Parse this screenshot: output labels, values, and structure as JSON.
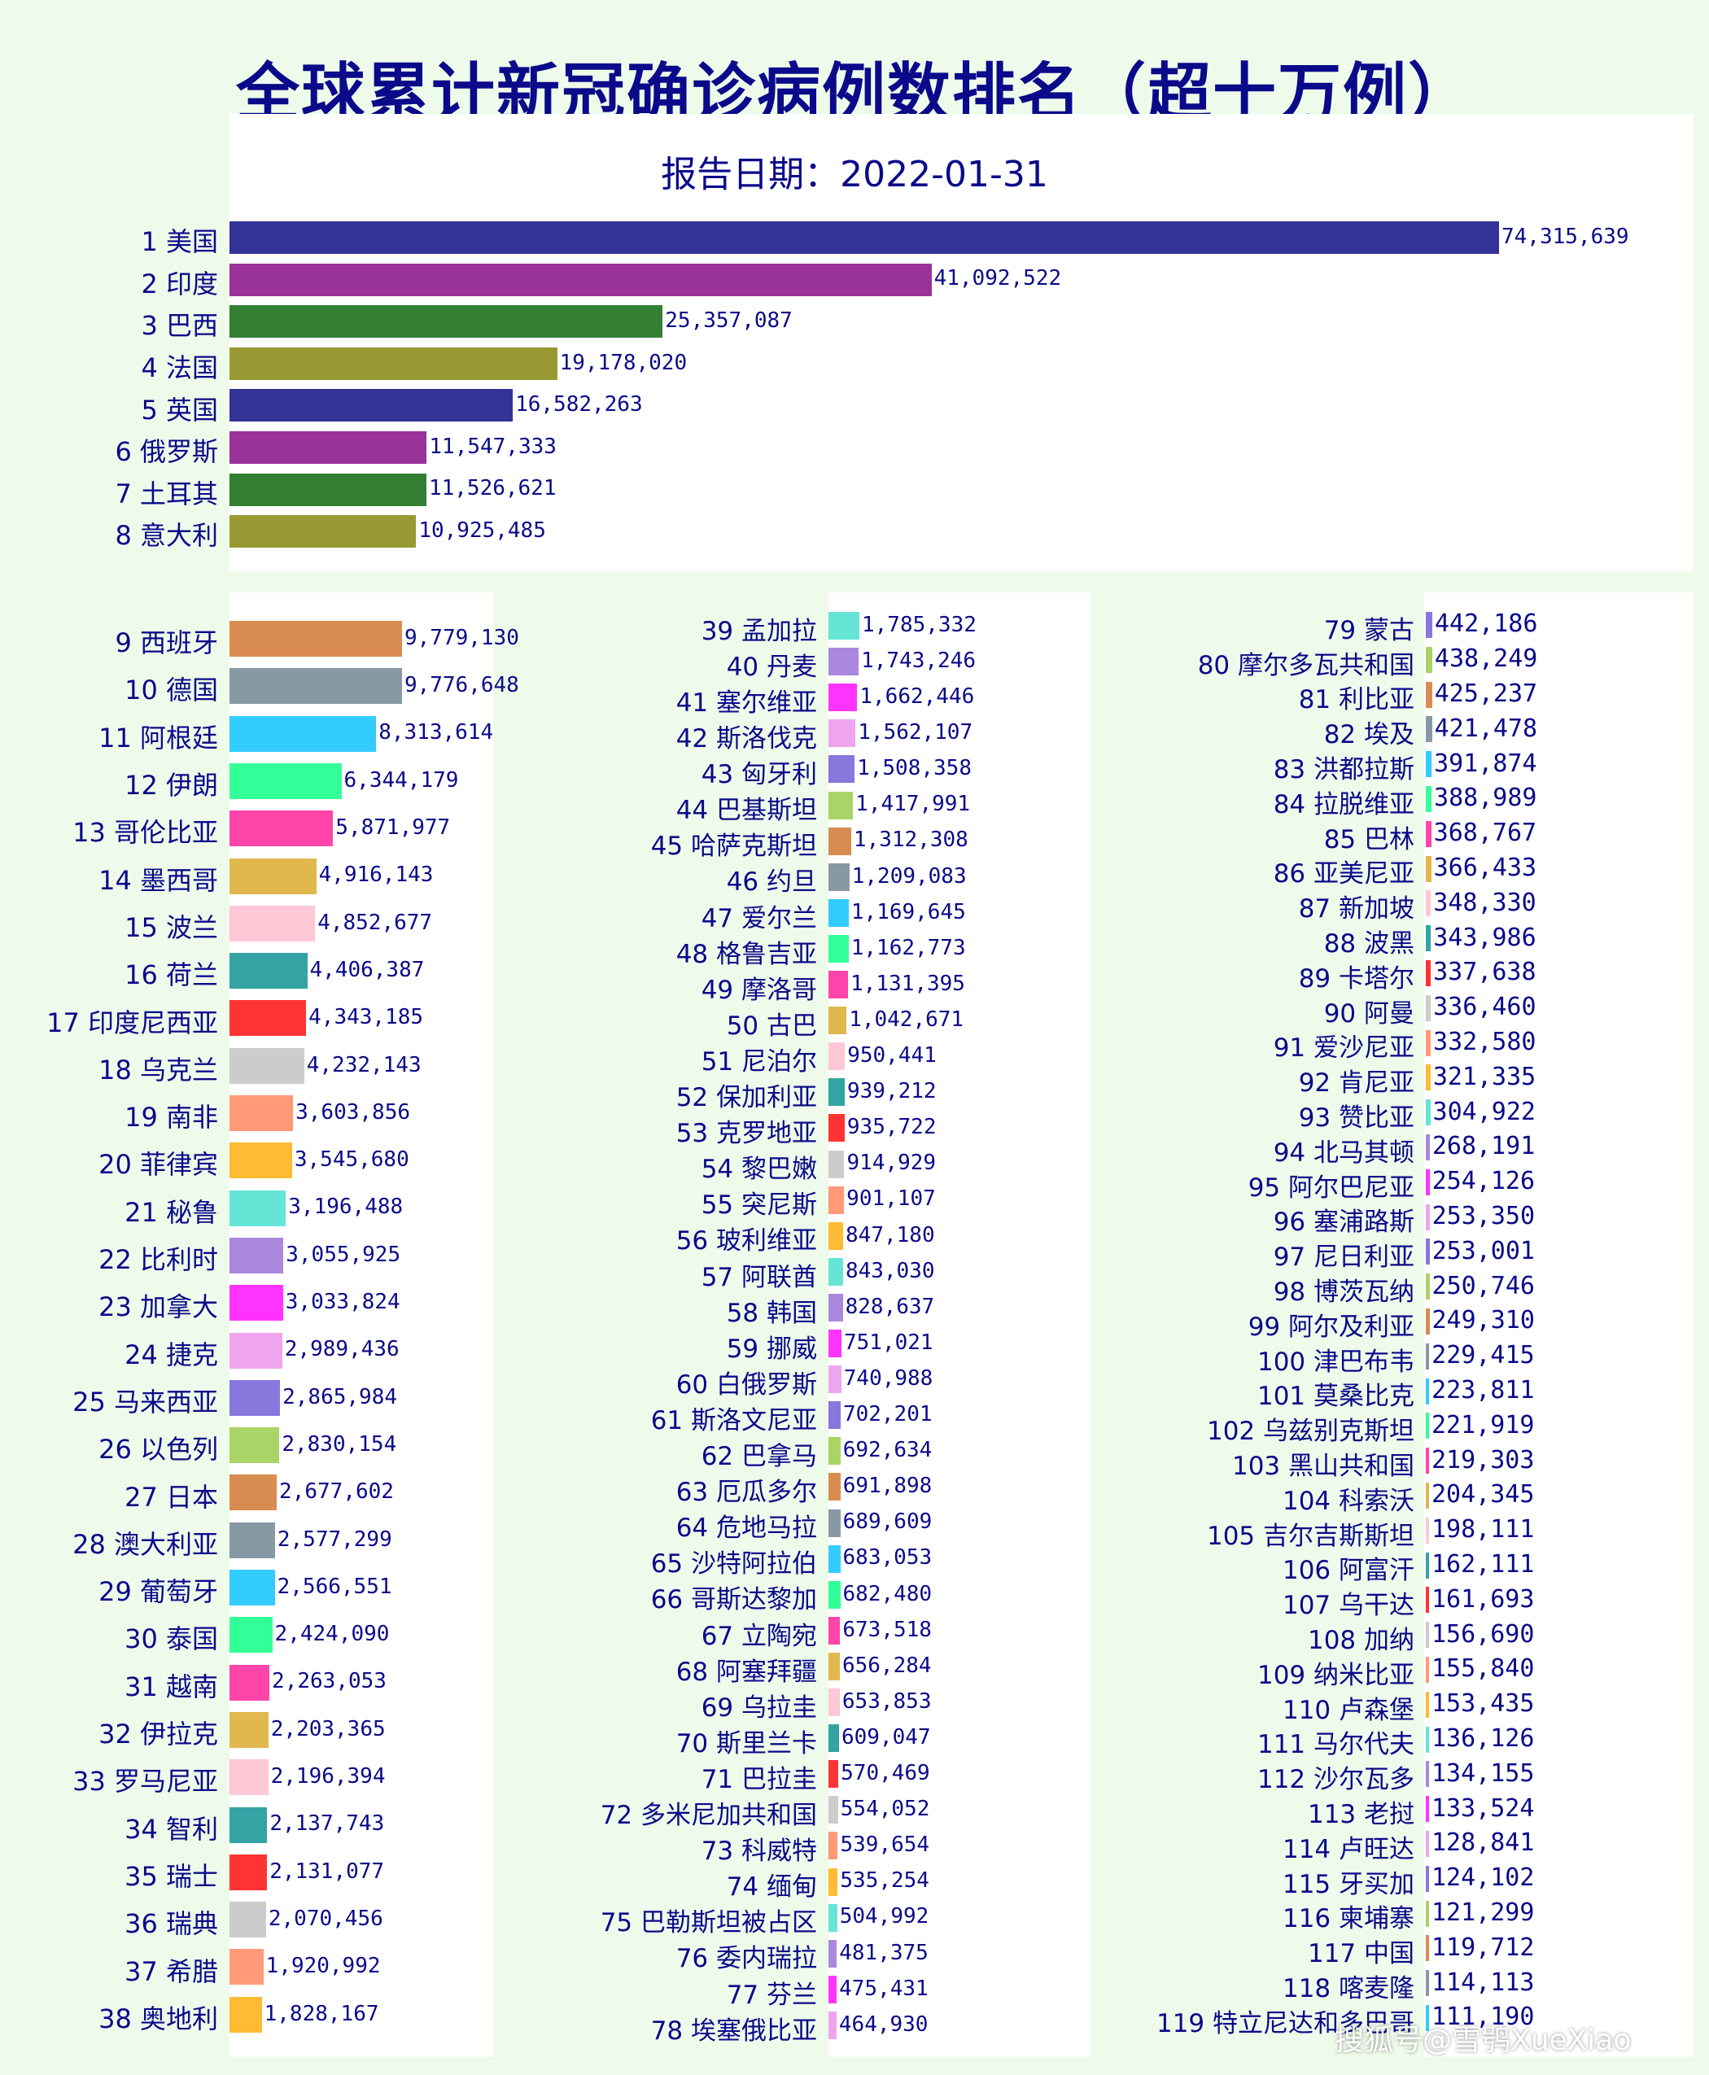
{
  "chart_data": {
    "type": "bar",
    "title": "全球累计新冠确诊病例数排名（超十万例）",
    "subtitle": "报告日期：2022-01-31",
    "watermark": "搜狐号@雪鸮XueXiao",
    "series_colors": [
      "#333399",
      "#993399",
      "#337f33",
      "#999933",
      "#d98c4f",
      "#8899a6",
      "#33ccff",
      "#33ff99",
      "#ff44aa",
      "#e0b84e",
      "#ffc8d6",
      "#33a3a3",
      "#ff3333",
      "#cccccc",
      "#ff9977",
      "#ffbb33",
      "#66e5d6",
      "#aa88dd",
      "#ff33ff",
      "#eea5ee",
      "#8877dd",
      "#aad466"
    ],
    "items": [
      {
        "rank": 1,
        "name": "美国",
        "value": 74315639,
        "label": "74,315,639"
      },
      {
        "rank": 2,
        "name": "印度",
        "value": 41092522,
        "label": "41,092,522"
      },
      {
        "rank": 3,
        "name": "巴西",
        "value": 25357087,
        "label": "25,357,087"
      },
      {
        "rank": 4,
        "name": "法国",
        "value": 19178020,
        "label": "19,178,020"
      },
      {
        "rank": 5,
        "name": "英国",
        "value": 16582263,
        "label": "16,582,263"
      },
      {
        "rank": 6,
        "name": "俄罗斯",
        "value": 11547333,
        "label": "11,547,333"
      },
      {
        "rank": 7,
        "name": "土耳其",
        "value": 11526621,
        "label": "11,526,621"
      },
      {
        "rank": 8,
        "name": "意大利",
        "value": 10925485,
        "label": "10,925,485"
      },
      {
        "rank": 9,
        "name": "西班牙",
        "value": 9779130,
        "label": "9,779,130"
      },
      {
        "rank": 10,
        "name": "德国",
        "value": 9776648,
        "label": "9,776,648"
      },
      {
        "rank": 11,
        "name": "阿根廷",
        "value": 8313614,
        "label": "8,313,614"
      },
      {
        "rank": 12,
        "name": "伊朗",
        "value": 6344179,
        "label": "6,344,179"
      },
      {
        "rank": 13,
        "name": "哥伦比亚",
        "value": 5871977,
        "label": "5,871,977"
      },
      {
        "rank": 14,
        "name": "墨西哥",
        "value": 4916143,
        "label": "4,916,143"
      },
      {
        "rank": 15,
        "name": "波兰",
        "value": 4852677,
        "label": "4,852,677"
      },
      {
        "rank": 16,
        "name": "荷兰",
        "value": 4406387,
        "label": "4,406,387"
      },
      {
        "rank": 17,
        "name": "印度尼西亚",
        "value": 4343185,
        "label": "4,343,185"
      },
      {
        "rank": 18,
        "name": "乌克兰",
        "value": 4232143,
        "label": "4,232,143"
      },
      {
        "rank": 19,
        "name": "南非",
        "value": 3603856,
        "label": "3,603,856"
      },
      {
        "rank": 20,
        "name": "菲律宾",
        "value": 3545680,
        "label": "3,545,680"
      },
      {
        "rank": 21,
        "name": "秘鲁",
        "value": 3196488,
        "label": "3,196,488"
      },
      {
        "rank": 22,
        "name": "比利时",
        "value": 3055925,
        "label": "3,055,925"
      },
      {
        "rank": 23,
        "name": "加拿大",
        "value": 3033824,
        "label": "3,033,824"
      },
      {
        "rank": 24,
        "name": "捷克",
        "value": 2989436,
        "label": "2,989,436"
      },
      {
        "rank": 25,
        "name": "马来西亚",
        "value": 2865984,
        "label": "2,865,984"
      },
      {
        "rank": 26,
        "name": "以色列",
        "value": 2830154,
        "label": "2,830,154"
      },
      {
        "rank": 27,
        "name": "日本",
        "value": 2677602,
        "label": "2,677,602"
      },
      {
        "rank": 28,
        "name": "澳大利亚",
        "value": 2577299,
        "label": "2,577,299"
      },
      {
        "rank": 29,
        "name": "葡萄牙",
        "value": 2566551,
        "label": "2,566,551"
      },
      {
        "rank": 30,
        "name": "泰国",
        "value": 2424090,
        "label": "2,424,090"
      },
      {
        "rank": 31,
        "name": "越南",
        "value": 2263053,
        "label": "2,263,053"
      },
      {
        "rank": 32,
        "name": "伊拉克",
        "value": 2203365,
        "label": "2,203,365"
      },
      {
        "rank": 33,
        "name": "罗马尼亚",
        "value": 2196394,
        "label": "2,196,394"
      },
      {
        "rank": 34,
        "name": "智利",
        "value": 2137743,
        "label": "2,137,743"
      },
      {
        "rank": 35,
        "name": "瑞士",
        "value": 2131077,
        "label": "2,131,077"
      },
      {
        "rank": 36,
        "name": "瑞典",
        "value": 2070456,
        "label": "2,070,456"
      },
      {
        "rank": 37,
        "name": "希腊",
        "value": 1920992,
        "label": "1,920,992"
      },
      {
        "rank": 38,
        "name": "奥地利",
        "value": 1828167,
        "label": "1,828,167"
      },
      {
        "rank": 39,
        "name": "孟加拉",
        "value": 1785332,
        "label": "1,785,332"
      },
      {
        "rank": 40,
        "name": "丹麦",
        "value": 1743246,
        "label": "1,743,246"
      },
      {
        "rank": 41,
        "name": "塞尔维亚",
        "value": 1662446,
        "label": "1,662,446"
      },
      {
        "rank": 42,
        "name": "斯洛伐克",
        "value": 1562107,
        "label": "1,562,107"
      },
      {
        "rank": 43,
        "name": "匈牙利",
        "value": 1508358,
        "label": "1,508,358"
      },
      {
        "rank": 44,
        "name": "巴基斯坦",
        "value": 1417991,
        "label": "1,417,991"
      },
      {
        "rank": 45,
        "name": "哈萨克斯坦",
        "value": 1312308,
        "label": "1,312,308"
      },
      {
        "rank": 46,
        "name": "约旦",
        "value": 1209083,
        "label": "1,209,083"
      },
      {
        "rank": 47,
        "name": "爱尔兰",
        "value": 1169645,
        "label": "1,169,645"
      },
      {
        "rank": 48,
        "name": "格鲁吉亚",
        "value": 1162773,
        "label": "1,162,773"
      },
      {
        "rank": 49,
        "name": "摩洛哥",
        "value": 1131395,
        "label": "1,131,395"
      },
      {
        "rank": 50,
        "name": "古巴",
        "value": 1042671,
        "label": "1,042,671"
      },
      {
        "rank": 51,
        "name": "尼泊尔",
        "value": 950441,
        "label": "950,441"
      },
      {
        "rank": 52,
        "name": "保加利亚",
        "value": 939212,
        "label": "939,212"
      },
      {
        "rank": 53,
        "name": "克罗地亚",
        "value": 935722,
        "label": "935,722"
      },
      {
        "rank": 54,
        "name": "黎巴嫩",
        "value": 914929,
        "label": "914,929"
      },
      {
        "rank": 55,
        "name": "突尼斯",
        "value": 901107,
        "label": "901,107"
      },
      {
        "rank": 56,
        "name": "玻利维亚",
        "value": 847180,
        "label": "847,180"
      },
      {
        "rank": 57,
        "name": "阿联酋",
        "value": 843030,
        "label": "843,030"
      },
      {
        "rank": 58,
        "name": "韩国",
        "value": 828637,
        "label": "828,637"
      },
      {
        "rank": 59,
        "name": "挪威",
        "value": 751021,
        "label": "751,021"
      },
      {
        "rank": 60,
        "name": "白俄罗斯",
        "value": 740988,
        "label": "740,988"
      },
      {
        "rank": 61,
        "name": "斯洛文尼亚",
        "value": 702201,
        "label": "702,201"
      },
      {
        "rank": 62,
        "name": "巴拿马",
        "value": 692634,
        "label": "692,634"
      },
      {
        "rank": 63,
        "name": "厄瓜多尔",
        "value": 691898,
        "label": "691,898"
      },
      {
        "rank": 64,
        "name": "危地马拉",
        "value": 689609,
        "label": "689,609"
      },
      {
        "rank": 65,
        "name": "沙特阿拉伯",
        "value": 683053,
        "label": "683,053"
      },
      {
        "rank": 66,
        "name": "哥斯达黎加",
        "value": 682480,
        "label": "682,480"
      },
      {
        "rank": 67,
        "name": "立陶宛",
        "value": 673518,
        "label": "673,518"
      },
      {
        "rank": 68,
        "name": "阿塞拜疆",
        "value": 656284,
        "label": "656,284"
      },
      {
        "rank": 69,
        "name": "乌拉圭",
        "value": 653853,
        "label": "653,853"
      },
      {
        "rank": 70,
        "name": "斯里兰卡",
        "value": 609047,
        "label": "609,047"
      },
      {
        "rank": 71,
        "name": "巴拉圭",
        "value": 570469,
        "label": "570,469"
      },
      {
        "rank": 72,
        "name": "多米尼加共和国",
        "value": 554052,
        "label": "554,052"
      },
      {
        "rank": 73,
        "name": "科威特",
        "value": 539654,
        "label": "539,654"
      },
      {
        "rank": 74,
        "name": "缅甸",
        "value": 535254,
        "label": "535,254"
      },
      {
        "rank": 75,
        "name": "巴勒斯坦被占区",
        "value": 504992,
        "label": "504,992"
      },
      {
        "rank": 76,
        "name": "委内瑞拉",
        "value": 481375,
        "label": "481,375"
      },
      {
        "rank": 77,
        "name": "芬兰",
        "value": 475431,
        "label": "475,431"
      },
      {
        "rank": 78,
        "name": "埃塞俄比亚",
        "value": 464930,
        "label": "464,930"
      },
      {
        "rank": 79,
        "name": "蒙古",
        "value": 442186,
        "label": "442,186"
      },
      {
        "rank": 80,
        "name": "摩尔多瓦共和国",
        "value": 438249,
        "label": "438,249"
      },
      {
        "rank": 81,
        "name": "利比亚",
        "value": 425237,
        "label": "425,237"
      },
      {
        "rank": 82,
        "name": "埃及",
        "value": 421478,
        "label": "421,478"
      },
      {
        "rank": 83,
        "name": "洪都拉斯",
        "value": 391874,
        "label": "391,874"
      },
      {
        "rank": 84,
        "name": "拉脱维亚",
        "value": 388989,
        "label": "388,989"
      },
      {
        "rank": 85,
        "name": "巴林",
        "value": 368767,
        "label": "368,767"
      },
      {
        "rank": 86,
        "name": "亚美尼亚",
        "value": 366433,
        "label": "366,433"
      },
      {
        "rank": 87,
        "name": "新加坡",
        "value": 348330,
        "label": "348,330"
      },
      {
        "rank": 88,
        "name": "波黑",
        "value": 343986,
        "label": "343,986"
      },
      {
        "rank": 89,
        "name": "卡塔尔",
        "value": 337638,
        "label": "337,638"
      },
      {
        "rank": 90,
        "name": "阿曼",
        "value": 336460,
        "label": "336,460"
      },
      {
        "rank": 91,
        "name": "爱沙尼亚",
        "value": 332580,
        "label": "332,580"
      },
      {
        "rank": 92,
        "name": "肯尼亚",
        "value": 321335,
        "label": "321,335"
      },
      {
        "rank": 93,
        "name": "赞比亚",
        "value": 304922,
        "label": "304,922"
      },
      {
        "rank": 94,
        "name": "北马其顿",
        "value": 268191,
        "label": "268,191"
      },
      {
        "rank": 95,
        "name": "阿尔巴尼亚",
        "value": 254126,
        "label": "254,126"
      },
      {
        "rank": 96,
        "name": "塞浦路斯",
        "value": 253350,
        "label": "253,350"
      },
      {
        "rank": 97,
        "name": "尼日利亚",
        "value": 253001,
        "label": "253,001"
      },
      {
        "rank": 98,
        "name": "博茨瓦纳",
        "value": 250746,
        "label": "250,746"
      },
      {
        "rank": 99,
        "name": "阿尔及利亚",
        "value": 249310,
        "label": "249,310"
      },
      {
        "rank": 100,
        "name": "津巴布韦",
        "value": 229415,
        "label": "229,415"
      },
      {
        "rank": 101,
        "name": "莫桑比克",
        "value": 223811,
        "label": "223,811"
      },
      {
        "rank": 102,
        "name": "乌兹别克斯坦",
        "value": 221919,
        "label": "221,919"
      },
      {
        "rank": 103,
        "name": "黑山共和国",
        "value": 219303,
        "label": "219,303"
      },
      {
        "rank": 104,
        "name": "科索沃",
        "value": 204345,
        "label": "204,345"
      },
      {
        "rank": 105,
        "name": "吉尔吉斯斯坦",
        "value": 198111,
        "label": "198,111"
      },
      {
        "rank": 106,
        "name": "阿富汗",
        "value": 162111,
        "label": "162,111"
      },
      {
        "rank": 107,
        "name": "乌干达",
        "value": 161693,
        "label": "161,693"
      },
      {
        "rank": 108,
        "name": "加纳",
        "value": 156690,
        "label": "156,690"
      },
      {
        "rank": 109,
        "name": "纳米比亚",
        "value": 155840,
        "label": "155,840"
      },
      {
        "rank": 110,
        "name": "卢森堡",
        "value": 153435,
        "label": "153,435"
      },
      {
        "rank": 111,
        "name": "马尔代夫",
        "value": 136126,
        "label": "136,126"
      },
      {
        "rank": 112,
        "name": "沙尔瓦多",
        "value": 134155,
        "label": "134,155"
      },
      {
        "rank": 113,
        "name": "老挝",
        "value": 133524,
        "label": "133,524"
      },
      {
        "rank": 114,
        "name": "卢旺达",
        "value": 128841,
        "label": "128,841"
      },
      {
        "rank": 115,
        "name": "牙买加",
        "value": 124102,
        "label": "124,102"
      },
      {
        "rank": 116,
        "name": "柬埔寨",
        "value": 121299,
        "label": "121,299"
      },
      {
        "rank": 117,
        "name": "中国",
        "value": 119712,
        "label": "119,712"
      },
      {
        "rank": 118,
        "name": "喀麦隆",
        "value": 114113,
        "label": "114,113"
      },
      {
        "rank": 119,
        "name": "特立尼达和多巴哥",
        "value": 111190,
        "label": "111,190"
      }
    ]
  }
}
